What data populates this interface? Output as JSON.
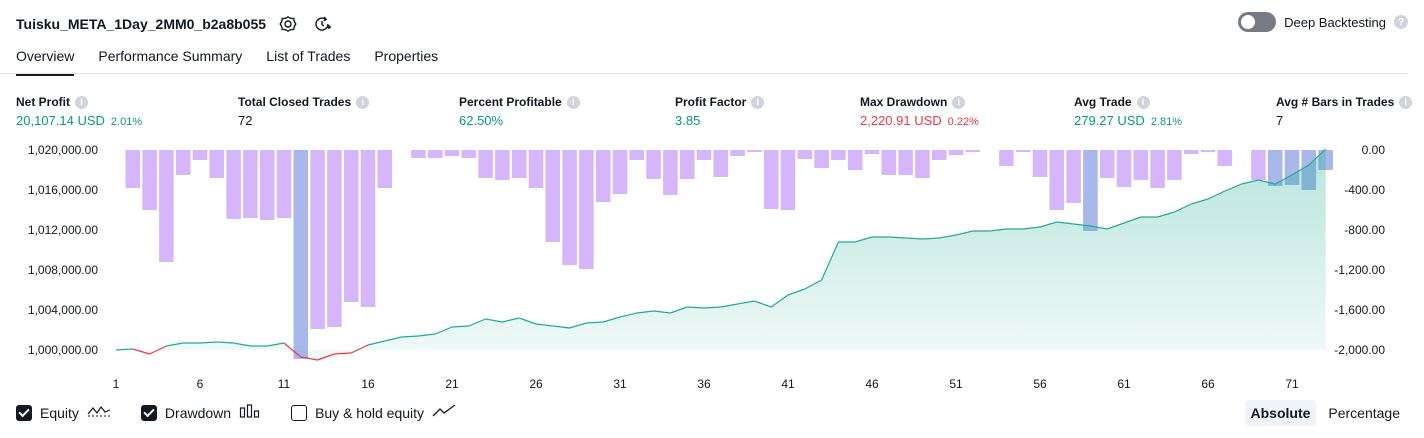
{
  "header": {
    "title": "Tuisku_META_1Day_2MM0_b2a8b055",
    "deep_backtesting_label": "Deep Backtesting",
    "deep_backtesting_enabled": false
  },
  "tabs": [
    {
      "label": "Overview",
      "active": true
    },
    {
      "label": "Performance Summary",
      "active": false
    },
    {
      "label": "List of Trades",
      "active": false
    },
    {
      "label": "Properties",
      "active": false
    }
  ],
  "metrics": {
    "net_profit": {
      "label": "Net Profit",
      "value": "20,107.14 USD",
      "pct": "2.01%"
    },
    "total_closed_trades": {
      "label": "Total Closed Trades",
      "value": "72"
    },
    "percent_profitable": {
      "label": "Percent Profitable",
      "value": "62.50%"
    },
    "profit_factor": {
      "label": "Profit Factor",
      "value": "3.85"
    },
    "max_drawdown": {
      "label": "Max Drawdown",
      "value": "2,220.91 USD",
      "pct": "0.22%"
    },
    "avg_trade": {
      "label": "Avg Trade",
      "value": "279.27 USD",
      "pct": "2.81%"
    },
    "avg_bars_in_trades": {
      "label": "Avg # Bars in Trades",
      "value": "7"
    }
  },
  "chart_data": {
    "type": "area",
    "x_ticks": [
      "1",
      "6",
      "11",
      "16",
      "21",
      "26",
      "31",
      "36",
      "41",
      "46",
      "51",
      "56",
      "61",
      "66",
      "71"
    ],
    "y_left_ticks": [
      "1,020,000.00",
      "1,016,000.00",
      "1,012,000.00",
      "1,008,000.00",
      "1,004,000.00",
      "1,000,000.00"
    ],
    "y_right_ticks": [
      "0.00",
      "-400.00",
      "-800.00",
      "-1,200.00",
      "-1,600.00",
      "-2,000.00"
    ],
    "y_left_range": [
      1000000,
      1020000
    ],
    "y_right_range": [
      -2000,
      0
    ],
    "series": [
      {
        "name": "Equity",
        "x": [
          1,
          2,
          3,
          4,
          5,
          6,
          7,
          8,
          9,
          10,
          11,
          12,
          13,
          14,
          15,
          16,
          17,
          18,
          19,
          20,
          21,
          22,
          23,
          24,
          25,
          26,
          27,
          28,
          29,
          30,
          31,
          32,
          33,
          34,
          35,
          36,
          37,
          38,
          39,
          40,
          41,
          42,
          43,
          44,
          45,
          46,
          47,
          48,
          49,
          50,
          51,
          52,
          53,
          54,
          55,
          56,
          57,
          58,
          59,
          60,
          61,
          62,
          63,
          64,
          65,
          66,
          67,
          68,
          69,
          70,
          71,
          72,
          73
        ],
        "values": [
          1000000,
          1000100,
          999600,
          1000400,
          1000700,
          1000700,
          1000800,
          1000700,
          1000400,
          1000400,
          1000700,
          999300,
          999000,
          999600,
          999700,
          1000500,
          1000900,
          1001300,
          1001400,
          1001600,
          1002300,
          1002400,
          1003100,
          1002800,
          1003200,
          1002600,
          1002400,
          1002200,
          1002700,
          1002800,
          1003300,
          1003700,
          1003900,
          1003700,
          1004300,
          1004200,
          1004300,
          1004600,
          1004900,
          1004300,
          1005500,
          1006100,
          1007000,
          1010800,
          1010800,
          1011300,
          1011300,
          1011200,
          1011100,
          1011200,
          1011500,
          1011900,
          1011900,
          1012100,
          1012100,
          1012300,
          1012800,
          1012600,
          1012400,
          1012100,
          1012700,
          1013300,
          1013300,
          1013800,
          1014600,
          1015100,
          1015900,
          1016600,
          1017000,
          1016600,
          1017500,
          1018500,
          1020100
        ]
      },
      {
        "name": "Drawdown",
        "x": [
          1,
          2,
          3,
          4,
          5,
          6,
          7,
          8,
          9,
          10,
          11,
          12,
          13,
          14,
          15,
          16,
          17,
          18,
          19,
          20,
          21,
          22,
          23,
          24,
          25,
          26,
          27,
          28,
          29,
          30,
          31,
          32,
          33,
          34,
          35,
          36,
          37,
          38,
          39,
          40,
          41,
          42,
          43,
          44,
          45,
          46,
          47,
          48,
          49,
          50,
          51,
          52,
          53,
          54,
          55,
          56,
          57,
          58,
          59,
          60,
          61,
          62,
          63,
          64,
          65,
          66,
          67,
          68,
          69,
          70,
          71,
          72,
          73
        ],
        "values": [
          0,
          -380,
          -600,
          -1120,
          -250,
          -100,
          -280,
          -690,
          -680,
          -700,
          -680,
          -2090,
          -1790,
          -1770,
          -1520,
          -1570,
          -380,
          0,
          -80,
          -80,
          -60,
          -80,
          -280,
          -300,
          -280,
          -380,
          -920,
          -1150,
          -1190,
          -520,
          -440,
          -100,
          -290,
          -450,
          -290,
          -100,
          -270,
          -60,
          -20,
          -590,
          -600,
          -90,
          -180,
          -100,
          -200,
          -40,
          -250,
          -250,
          -280,
          -100,
          -50,
          -20,
          0,
          -160,
          -20,
          -270,
          -600,
          -530,
          -810,
          -280,
          -370,
          -300,
          -380,
          -300,
          -40,
          -20,
          -160,
          0,
          -300,
          -360,
          -350,
          -400,
          -200
        ]
      }
    ],
    "legend": [
      "Equity",
      "Drawdown",
      "Buy & hold equity"
    ],
    "colors": {
      "equity_line": "#22ab94",
      "equity_below_initial": "#f23645",
      "equity_fill": "#22ab94",
      "drawdown_bar": "#d6b6fb",
      "drawdown_bar_overlap": "#a8b8ea"
    }
  },
  "legend": {
    "equity": {
      "label": "Equity",
      "checked": true
    },
    "drawdown": {
      "label": "Drawdown",
      "checked": true
    },
    "buy_hold": {
      "label": "Buy & hold equity",
      "checked": false
    }
  },
  "modes": {
    "absolute": "Absolute",
    "percentage": "Percentage",
    "active": "absolute"
  }
}
